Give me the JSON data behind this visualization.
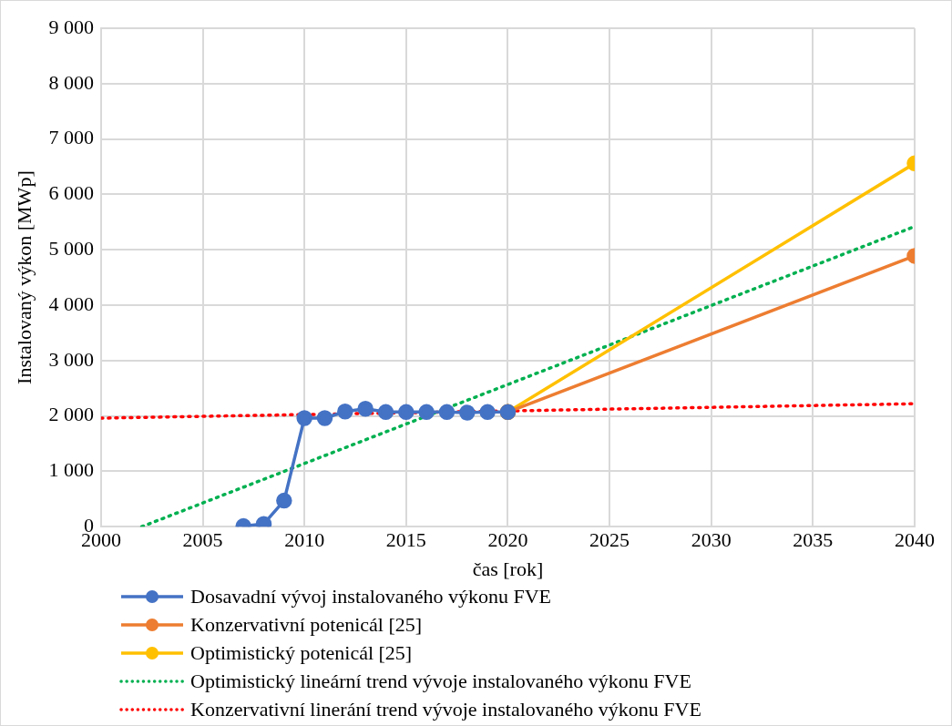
{
  "chart_data": {
    "type": "line",
    "xlabel": "čas [rok]",
    "ylabel": "Instalovaný výkon [MWp]",
    "xlim": [
      2000,
      2040
    ],
    "xticks": [
      2000,
      2005,
      2010,
      2015,
      2020,
      2025,
      2030,
      2035,
      2040
    ],
    "ylim": [
      0,
      9000
    ],
    "yticks": [
      0,
      {
        "value": 1000,
        "label": "1 000"
      },
      {
        "value": 2000,
        "label": "2 000"
      },
      {
        "value": 3000,
        "label": "3 000"
      },
      {
        "value": 4000,
        "label": "4 000"
      },
      {
        "value": 5000,
        "label": "5 000"
      },
      {
        "value": 6000,
        "label": "6 000"
      },
      {
        "value": 7000,
        "label": "7 000"
      },
      {
        "value": 8000,
        "label": "8 000"
      },
      {
        "value": 9000,
        "label": "9 000"
      }
    ],
    "grid": true,
    "legend": "bottom",
    "series": [
      {
        "name": "Dosavadní vývoj instalovaného výkonu FVE",
        "color": "#4472c4",
        "marker": "circle",
        "line_style": "solid",
        "x": [
          2007,
          2008,
          2009,
          2010,
          2011,
          2012,
          2013,
          2014,
          2015,
          2016,
          2017,
          2018,
          2019,
          2020
        ],
        "values": [
          10,
          50,
          470,
          1960,
          1960,
          2080,
          2130,
          2070,
          2070,
          2070,
          2070,
          2060,
          2070,
          2070
        ]
      },
      {
        "name": "Konzervativní potenicál [25]",
        "color": "#ed7d31",
        "marker": "circle",
        "line_style": "solid",
        "x": [
          2020,
          2040
        ],
        "values": [
          2070,
          4890
        ]
      },
      {
        "name": "Optimistický potenicál [25]",
        "color": "#ffc000",
        "marker": "circle",
        "line_style": "solid",
        "x": [
          2020,
          2040
        ],
        "values": [
          2070,
          6560
        ]
      },
      {
        "name": "Optimistický lineární trend vývoje instalovaného výkonu FVE",
        "color": "#00b050",
        "marker": "none",
        "line_style": "dotted",
        "x": [
          2002,
          2040
        ],
        "values": [
          0,
          5420
        ]
      },
      {
        "name": "Konzervativní linerání trend vývoje instalovaného výkonu FVE",
        "color": "#ff0000",
        "marker": "none",
        "line_style": "dotted",
        "x": [
          2000,
          2040
        ],
        "values": [
          1960,
          2220
        ]
      }
    ]
  }
}
